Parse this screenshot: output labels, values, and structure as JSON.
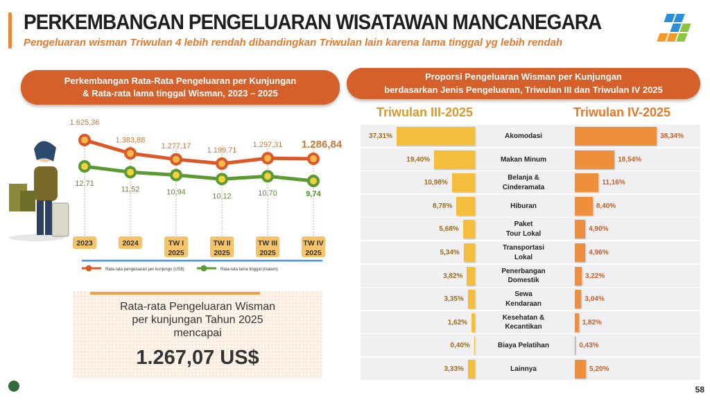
{
  "header": {
    "title": "PERKEMBANGAN PENGELUARAN WISATAWAN MANCANEGARA",
    "subtitle": "Pengeluaran wisman Triwulan 4 lebih rendah dibandingkan Triwulan lain karena lama tinggal yg lebih rendah"
  },
  "left_panel": {
    "title_line1": "Perkembangan Rata-Rata Pengeluaran per Kunjungan",
    "title_line2": "& Rata-rata lama tinggal Wisman, 2023 – 2025"
  },
  "summary": {
    "line1": "Rata-rata Pengeluaran Wisman",
    "line2": "per kunjungan Tahun 2025",
    "line3": "mencapai",
    "value": "1.267,07 US$"
  },
  "right_panel": {
    "title_line1": "Proporsi Pengeluaran Wisman per Kunjungan",
    "title_line2": "berdasarkan Jenis Pengeluaran, Triwulan III dan Triwulan IV 2025"
  },
  "page_number": "58",
  "chart_data": [
    {
      "type": "line",
      "categories": [
        [
          "2023"
        ],
        [
          "2024"
        ],
        [
          "TW I",
          "2025"
        ],
        [
          "TW II",
          "2025"
        ],
        [
          "TW III",
          "2025"
        ],
        [
          "TW IV",
          "2025"
        ]
      ],
      "series": [
        {
          "name": "Rata-rata pengeluaran per kunjungn (US$)",
          "color": "#d9592a",
          "values": [
            1625.36,
            1383.88,
            1277.17,
            1199.71,
            1297.31,
            1286.84
          ],
          "labels": [
            "1.625,36",
            "1.383,88",
            "1.277,17",
            "1.199,71",
            "1.297,31",
            "1.286,84"
          ]
        },
        {
          "name": "Rata-rata lama tinggal (malam)",
          "color": "#5a9a32",
          "values": [
            12.71,
            11.52,
            10.94,
            10.12,
            10.7,
            9.74
          ],
          "labels": [
            "12,71",
            "11,52",
            "10,94",
            "10,12",
            "10,70",
            "9,74"
          ]
        }
      ]
    },
    {
      "type": "bar",
      "headers": [
        "Triwulan III-2025",
        "Triwulan IV-2025"
      ],
      "categories": [
        "Akomodasi",
        "Makan Minum",
        "Belanja & Cinderamata",
        "Hiburan",
        "Paket Tour Lokal",
        "Transportasi Lokal",
        "Penerbangan Domestik",
        "Sewa Kendaraan",
        "Kesehatan & Kecantikan",
        "Biaya Pelatihan",
        "Lainnya"
      ],
      "category_lines": [
        [
          "Akomodasi"
        ],
        [
          "Makan Minum"
        ],
        [
          "Belanja &",
          "Cinderamata"
        ],
        [
          "Hiburan"
        ],
        [
          "Paket",
          "Tour Lokal"
        ],
        [
          "Transportasi",
          "Lokal"
        ],
        [
          "Penerbangan",
          "Domestik"
        ],
        [
          "Sewa",
          "Kendaraan"
        ],
        [
          "Kesehatan &",
          "Kecantikan"
        ],
        [
          "Biaya Pelatihan"
        ],
        [
          "Lainnya"
        ]
      ],
      "series": [
        {
          "name": "Triwulan III-2025",
          "color": "#f4bd3c",
          "values": [
            37.31,
            19.4,
            10.98,
            8.78,
            5.68,
            5.34,
            3.82,
            3.35,
            1.62,
            0.4,
            3.33
          ],
          "labels": [
            "37,31%",
            "19,40%",
            "10,98%",
            "8,78%",
            "5,68%",
            "5,34%",
            "3,82%",
            "3,35%",
            "1,62%",
            "0,40%",
            "3,33%"
          ]
        },
        {
          "name": "Triwulan IV-2025",
          "color": "#ef8f3c",
          "values": [
            38.34,
            18.54,
            11.16,
            8.4,
            4.9,
            4.96,
            3.22,
            3.04,
            1.82,
            0.43,
            5.2
          ],
          "labels": [
            "38,34%",
            "18,54%",
            "11,16%",
            "8,40%",
            "4,90%",
            "4,96%",
            "3,22%",
            "3,04%",
            "1,82%",
            "0,43%",
            "5,20%"
          ]
        }
      ]
    }
  ]
}
